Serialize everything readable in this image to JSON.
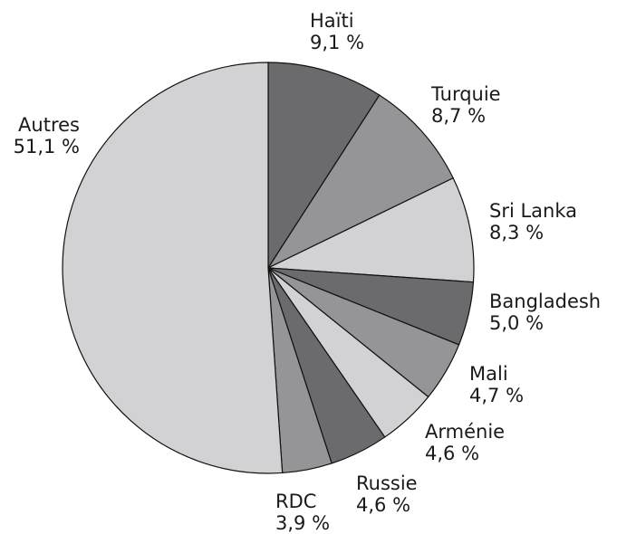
{
  "chart_data": {
    "type": "pie",
    "start": "top",
    "direction": "clockwise",
    "categories": [
      "Haïti",
      "Turquie",
      "Sri Lanka",
      "Bangladesh",
      "Mali",
      "Arménie",
      "Russie",
      "RDC",
      "Autres"
    ],
    "values": [
      9.1,
      8.7,
      8.3,
      5.0,
      4.7,
      4.6,
      4.6,
      3.9,
      51.1
    ],
    "value_labels": [
      "9,1 %",
      "8,7 %",
      "8,3 %",
      "5,0 %",
      "4,7 %",
      "4,6 %",
      "4,6 %",
      "3,9 %",
      "51,1 %"
    ],
    "colors": [
      "#6b6b6d",
      "#959597",
      "#d2d2d4",
      "#6b6b6d",
      "#959597",
      "#d2d2d4",
      "#6b6b6d",
      "#959597",
      "#d2d2d4"
    ]
  }
}
